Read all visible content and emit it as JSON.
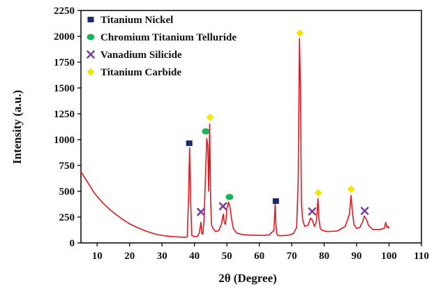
{
  "chart_data": {
    "type": "line",
    "title": "",
    "xlabel": "2θ (Degree)",
    "ylabel": "Intensity (a.u.)",
    "xlim": [
      5,
      110
    ],
    "ylim": [
      0,
      2250
    ],
    "xticks": [
      10,
      20,
      30,
      40,
      50,
      60,
      70,
      80,
      90,
      100,
      110
    ],
    "yticks": [
      0,
      250,
      500,
      750,
      1000,
      1250,
      1500,
      1750,
      2000,
      2250
    ],
    "grid": false,
    "legend_position": "top-left",
    "line_color": "#e8141c",
    "series": [
      {
        "x": [
          5,
          6,
          7,
          8,
          9,
          10,
          12,
          14,
          16,
          18,
          20,
          22,
          25,
          28,
          30,
          33,
          35,
          37,
          37.8,
          38.2,
          38.5,
          38.8,
          39.2,
          40,
          41,
          41.5,
          42,
          42.3,
          42.6,
          43,
          43.4,
          43.8,
          44.1,
          44.4,
          44.7,
          45,
          45.3,
          45.7,
          46.5,
          47.5,
          48.3,
          48.9,
          49.2,
          49.6,
          50,
          50.5,
          51,
          51.5,
          52,
          53,
          55,
          58,
          61,
          63,
          64.5,
          64.9,
          65.1,
          65.4,
          65.8,
          67,
          69,
          70.5,
          71.5,
          72,
          72.4,
          72.7,
          73,
          73.4,
          74,
          75,
          75.8,
          76.4,
          77,
          77.6,
          78.1,
          78.4,
          78.8,
          79.5,
          81,
          84,
          86.5,
          87.8,
          88.3,
          88.7,
          89.2,
          90,
          91,
          91.8,
          92.4,
          93,
          93.7,
          95,
          97,
          98.5,
          99,
          99.3,
          99.7,
          100
        ],
        "values": [
          690,
          640,
          590,
          540,
          490,
          450,
          380,
          320,
          270,
          225,
          185,
          155,
          115,
          85,
          72,
          62,
          58,
          55,
          60,
          450,
          920,
          420,
          70,
          62,
          65,
          95,
          200,
          90,
          85,
          250,
          650,
          1010,
          950,
          500,
          1150,
          400,
          170,
          140,
          110,
          120,
          180,
          280,
          200,
          180,
          330,
          395,
          340,
          220,
          140,
          95,
          80,
          75,
          72,
          78,
          120,
          380,
          200,
          90,
          70,
          70,
          75,
          90,
          150,
          600,
          1980,
          1500,
          380,
          220,
          160,
          170,
          240,
          220,
          160,
          200,
          430,
          230,
          140,
          120,
          110,
          115,
          160,
          280,
          460,
          300,
          180,
          140,
          150,
          200,
          260,
          230,
          170,
          130,
          130,
          140,
          200,
          150,
          160,
          140
        ]
      }
    ],
    "legend": [
      {
        "label": "Titanium Nickel",
        "marker": "square",
        "color": "#1a2a6c"
      },
      {
        "label": "Chromium Titanium Telluride",
        "marker": "circle",
        "color": "#1db35b"
      },
      {
        "label": "Vanadium Silicide",
        "marker": "cross",
        "color": "#7b3fa0"
      },
      {
        "label": "Titanium Carbide",
        "marker": "diamond",
        "color": "#f4e600"
      }
    ],
    "peak_markers": [
      {
        "x": 38.4,
        "y": 965,
        "phase": "Titanium Nickel"
      },
      {
        "x": 65.1,
        "y": 405,
        "phase": "Titanium Nickel"
      },
      {
        "x": 43.5,
        "y": 1080,
        "phase": "Chromium Titanium Telluride"
      },
      {
        "x": 50.8,
        "y": 445,
        "phase": "Chromium Titanium Telluride"
      },
      {
        "x": 42.0,
        "y": 300,
        "phase": "Vanadium Silicide"
      },
      {
        "x": 48.8,
        "y": 355,
        "phase": "Vanadium Silicide"
      },
      {
        "x": 76.3,
        "y": 305,
        "phase": "Vanadium Silicide"
      },
      {
        "x": 92.5,
        "y": 310,
        "phase": "Vanadium Silicide"
      },
      {
        "x": 44.8,
        "y": 1215,
        "phase": "Titanium Carbide"
      },
      {
        "x": 72.5,
        "y": 2030,
        "phase": "Titanium Carbide"
      },
      {
        "x": 78.2,
        "y": 485,
        "phase": "Titanium Carbide"
      },
      {
        "x": 88.3,
        "y": 520,
        "phase": "Titanium Carbide"
      }
    ]
  }
}
